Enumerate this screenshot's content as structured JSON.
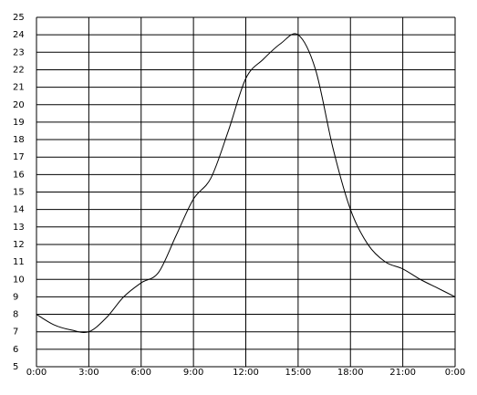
{
  "chart_data": {
    "type": "line",
    "x": [
      0,
      1,
      2,
      3,
      4,
      5,
      6,
      7,
      8,
      9,
      10,
      11,
      12,
      13,
      14,
      15,
      16,
      17,
      18,
      19,
      20,
      21,
      22,
      23,
      24
    ],
    "series": [
      {
        "color": "#000000",
        "values": [
          8,
          7.4,
          7.1,
          7.0,
          7.8,
          9.0,
          9.8,
          10.4,
          12.5,
          14.6,
          15.8,
          18.5,
          21.5,
          22.6,
          23.5,
          24,
          22,
          17.5,
          14,
          12,
          11,
          10.6,
          10.0,
          9.5,
          9
        ]
      }
    ],
    "xlim": [
      0,
      24
    ],
    "xticks": [
      {
        "value": 0,
        "label": "0:00"
      },
      {
        "value": 3,
        "label": "3:00"
      },
      {
        "value": 6,
        "label": "6:00"
      },
      {
        "value": 9,
        "label": "9:00"
      },
      {
        "value": 12,
        "label": "12:00"
      },
      {
        "value": 15,
        "label": "15:00"
      },
      {
        "value": 18,
        "label": "18:00"
      },
      {
        "value": 21,
        "label": "21:00"
      },
      {
        "value": 24,
        "label": "0:00"
      }
    ],
    "ylim": [
      5,
      25
    ],
    "yticks": [
      5,
      6,
      7,
      8,
      9,
      10,
      11,
      12,
      13,
      14,
      15,
      16,
      17,
      18,
      19,
      20,
      21,
      22,
      23,
      24,
      25
    ],
    "grid": true
  }
}
